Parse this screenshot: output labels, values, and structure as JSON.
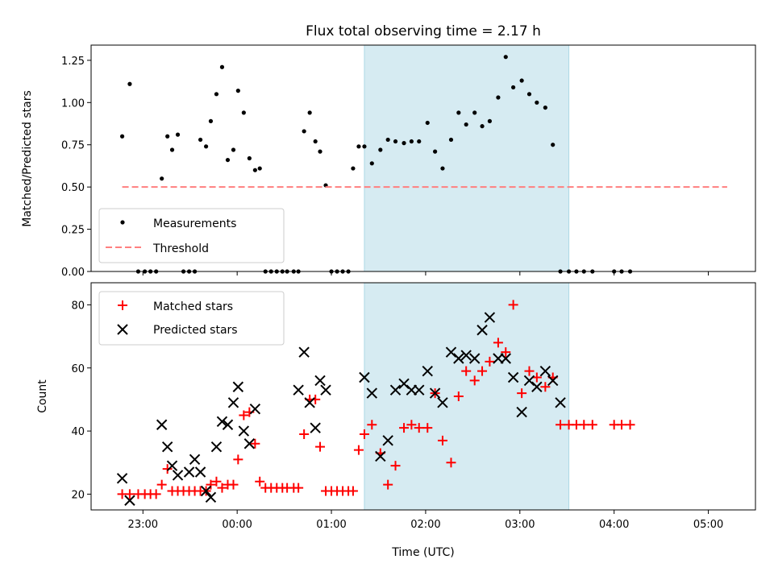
{
  "chart_data": [
    {
      "type": "scatter",
      "title": "Flux total observing time = 2.17 h",
      "xlabel": "",
      "ylabel": "Matched/Predicted stars",
      "xlim": [
        -0.55,
        6.5
      ],
      "ylim": [
        0,
        1.34
      ],
      "yticks": [
        0,
        0.25,
        0.5,
        0.75,
        1.0,
        1.25
      ],
      "ytick_labels": [
        "0.00",
        "0.25",
        "0.50",
        "0.75",
        "1.00",
        "1.25"
      ],
      "shaded_span": [
        2.35,
        4.52
      ],
      "legend_position": "lower-left",
      "series": [
        {
          "name": "Measurements",
          "marker": "dot",
          "color": "#000000",
          "x": [
            -0.22,
            -0.14,
            -0.05,
            0.02,
            0.08,
            0.14,
            0.2,
            0.26,
            0.31,
            0.37,
            0.43,
            0.49,
            0.55,
            0.61,
            0.67,
            0.72,
            0.78,
            0.84,
            0.9,
            0.96,
            1.01,
            1.07,
            1.13,
            1.19,
            1.24,
            1.3,
            1.36,
            1.42,
            1.48,
            1.53,
            1.6,
            1.65,
            1.71,
            1.77,
            1.83,
            1.88,
            1.94,
            2.0,
            2.06,
            2.12,
            2.18,
            2.23,
            2.29,
            2.35,
            2.43,
            2.52,
            2.6,
            2.68,
            2.77,
            2.85,
            2.93,
            3.02,
            3.1,
            3.18,
            3.27,
            3.35,
            3.43,
            3.52,
            3.6,
            3.68,
            3.77,
            3.85,
            3.93,
            4.02,
            4.1,
            4.18,
            4.27,
            4.35,
            4.43,
            4.52,
            4.6,
            4.68,
            4.77,
            5.0,
            5.08,
            5.17
          ],
          "y": [
            0.8,
            1.11,
            0,
            0,
            0,
            0,
            0.55,
            0.8,
            0.72,
            0.81,
            0,
            0,
            0,
            0.78,
            0.74,
            0.89,
            1.05,
            1.21,
            0.66,
            0.72,
            1.07,
            0.94,
            0.67,
            0.6,
            0.61,
            0,
            0,
            0,
            0,
            0,
            0,
            0,
            0.83,
            0.94,
            0.77,
            0.71,
            0.51,
            0,
            0,
            0,
            0,
            0.61,
            0.74,
            0.74,
            0.64,
            0.72,
            0.78,
            0.77,
            0.76,
            0.77,
            0.77,
            0.88,
            0.71,
            0.61,
            0.78,
            0.94,
            0.87,
            0.94,
            0.86,
            0.89,
            1.03,
            1.27,
            1.09,
            1.13,
            1.05,
            1.0,
            0.97,
            0.75,
            0,
            0,
            0,
            0,
            0,
            0,
            0,
            0
          ]
        },
        {
          "name": "Threshold",
          "style": "dashed",
          "color": "#ff7f7f",
          "x": [
            -0.22,
            6.2
          ],
          "y": [
            0.5,
            0.5
          ]
        }
      ]
    },
    {
      "type": "scatter",
      "title": "",
      "xlabel": "Time (UTC)",
      "ylabel": "Count",
      "xlim": [
        -0.55,
        6.5
      ],
      "ylim": [
        15,
        87
      ],
      "yticks": [
        20,
        40,
        60,
        80
      ],
      "ytick_labels": [
        "20",
        "40",
        "60",
        "80"
      ],
      "xticks": [
        0,
        1,
        2,
        3,
        4,
        5,
        6
      ],
      "xtick_labels": [
        "23:00",
        "00:00",
        "01:00",
        "02:00",
        "03:00",
        "04:00",
        "05:00"
      ],
      "shaded_span": [
        2.35,
        4.52
      ],
      "legend_position": "upper-left",
      "series": [
        {
          "name": "Matched stars",
          "marker": "plus",
          "color": "#ff0000",
          "x": [
            -0.22,
            -0.14,
            -0.05,
            0.02,
            0.08,
            0.14,
            0.2,
            0.26,
            0.31,
            0.37,
            0.43,
            0.49,
            0.55,
            0.61,
            0.67,
            0.72,
            0.78,
            0.84,
            0.9,
            0.96,
            1.01,
            1.07,
            1.13,
            1.19,
            1.24,
            1.3,
            1.36,
            1.42,
            1.48,
            1.53,
            1.6,
            1.65,
            1.71,
            1.77,
            1.83,
            1.88,
            1.94,
            2.0,
            2.06,
            2.12,
            2.18,
            2.23,
            2.29,
            2.35,
            2.43,
            2.52,
            2.6,
            2.68,
            2.77,
            2.85,
            2.93,
            3.02,
            3.1,
            3.18,
            3.27,
            3.35,
            3.43,
            3.52,
            3.6,
            3.68,
            3.77,
            3.85,
            3.93,
            4.02,
            4.1,
            4.18,
            4.27,
            4.35,
            4.43,
            4.52,
            4.6,
            4.68,
            4.77,
            5.0,
            5.08,
            5.17
          ],
          "y": [
            20,
            20,
            20,
            20,
            20,
            20,
            23,
            28,
            21,
            21,
            21,
            21,
            21,
            21,
            21,
            23,
            24,
            22,
            23,
            23,
            31,
            45,
            46,
            36,
            24,
            22,
            22,
            22,
            22,
            22,
            22,
            22,
            39,
            50,
            50,
            35,
            21,
            21,
            21,
            21,
            21,
            21,
            34,
            39,
            42,
            33,
            23,
            29,
            41,
            42,
            41,
            41,
            52,
            37,
            30,
            51,
            59,
            56,
            59,
            62,
            68,
            65,
            80,
            52,
            59,
            57,
            54,
            57,
            42,
            42,
            42,
            42,
            42,
            42,
            42,
            42
          ]
        },
        {
          "name": "Predicted stars",
          "marker": "x",
          "color": "#000000",
          "x": [
            -0.22,
            -0.14,
            0.2,
            0.26,
            0.31,
            0.37,
            0.49,
            0.55,
            0.61,
            0.67,
            0.72,
            0.78,
            0.84,
            0.9,
            0.96,
            1.01,
            1.07,
            1.13,
            1.19,
            1.65,
            1.71,
            1.77,
            1.83,
            1.88,
            1.94,
            2.35,
            2.43,
            2.52,
            2.6,
            2.68,
            2.77,
            2.85,
            2.93,
            3.02,
            3.1,
            3.18,
            3.27,
            3.35,
            3.43,
            3.52,
            3.6,
            3.68,
            3.77,
            3.85,
            3.93,
            4.02,
            4.1,
            4.18,
            4.27,
            4.35,
            4.43
          ],
          "y": [
            25,
            18,
            42,
            35,
            29,
            26,
            27,
            31,
            27,
            21,
            19,
            35,
            43,
            42,
            49,
            54,
            40,
            36,
            47,
            53,
            65,
            49,
            41,
            56,
            53,
            57,
            52,
            32,
            37,
            53,
            55,
            53,
            53,
            59,
            52,
            49,
            65,
            63,
            64,
            63,
            72,
            76,
            63,
            63,
            57,
            46,
            56,
            54,
            59,
            56,
            49
          ]
        }
      ]
    }
  ]
}
